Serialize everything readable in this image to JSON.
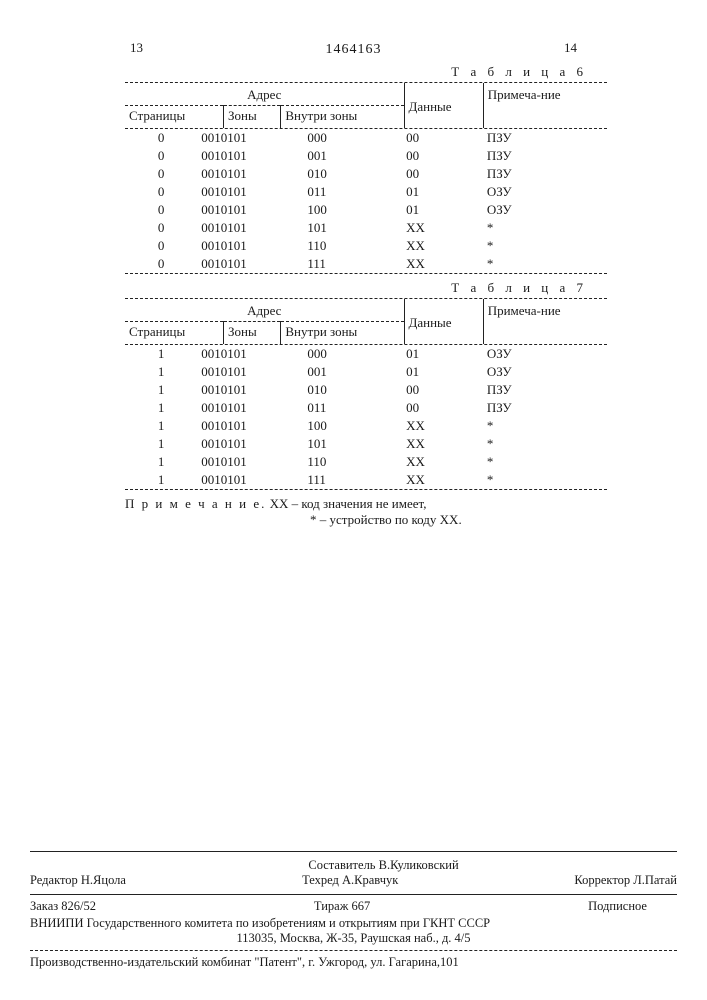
{
  "page_left": "13",
  "page_right": "14",
  "patent_number": "1464163",
  "table6": {
    "caption": "Т а б л и ц а  6",
    "headers": {
      "address": "Адрес",
      "pages": "Страницы",
      "zones": "Зоны",
      "inner_zone": "Внутри зоны",
      "data": "Данные",
      "note": "Примеча-ние"
    },
    "rows": [
      {
        "page": "0",
        "zone": "0010101",
        "inner": "000",
        "data": "00",
        "note": "ПЗУ"
      },
      {
        "page": "0",
        "zone": "0010101",
        "inner": "001",
        "data": "00",
        "note": "ПЗУ"
      },
      {
        "page": "0",
        "zone": "0010101",
        "inner": "010",
        "data": "00",
        "note": "ПЗУ"
      },
      {
        "page": "0",
        "zone": "0010101",
        "inner": "011",
        "data": "01",
        "note": "ОЗУ"
      },
      {
        "page": "0",
        "zone": "0010101",
        "inner": "100",
        "data": "01",
        "note": "ОЗУ"
      },
      {
        "page": "0",
        "zone": "0010101",
        "inner": "101",
        "data": "XX",
        "note": "*"
      },
      {
        "page": "0",
        "zone": "0010101",
        "inner": "110",
        "data": "XX",
        "note": "*"
      },
      {
        "page": "0",
        "zone": "0010101",
        "inner": "111",
        "data": "XX",
        "note": "*"
      }
    ]
  },
  "table7": {
    "caption": "Т а б л и ц а  7",
    "headers": {
      "address": "Адрес",
      "pages": "Страницы",
      "zones": "Зоны",
      "inner_zone": "Внутри зоны",
      "data": "Данные",
      "note": "Примеча-ние"
    },
    "rows": [
      {
        "page": "1",
        "zone": "0010101",
        "inner": "000",
        "data": "01",
        "note": "ОЗУ"
      },
      {
        "page": "1",
        "zone": "0010101",
        "inner": "001",
        "data": "01",
        "note": "ОЗУ"
      },
      {
        "page": "1",
        "zone": "0010101",
        "inner": "010",
        "data": "00",
        "note": "ПЗУ"
      },
      {
        "page": "1",
        "zone": "0010101",
        "inner": "011",
        "data": "00",
        "note": "ПЗУ"
      },
      {
        "page": "1",
        "zone": "0010101",
        "inner": "100",
        "data": "XX",
        "note": "*"
      },
      {
        "page": "1",
        "zone": "0010101",
        "inner": "101",
        "data": "XX",
        "note": "*"
      },
      {
        "page": "1",
        "zone": "0010101",
        "inner": "110",
        "data": "XX",
        "note": "*"
      },
      {
        "page": "1",
        "zone": "0010101",
        "inner": "111",
        "data": "XX",
        "note": "*"
      }
    ]
  },
  "note": {
    "label": "П р и м е ч а н и е.",
    "line1": " XX – код значения не имеет,",
    "line2": "* – устройство по коду XX."
  },
  "credits": {
    "compiler": "Составитель В.Куликовский",
    "editor": "Редактор Н.Яцола",
    "techred": "Техред А.Кравчук",
    "corrector": "Корректор Л.Патай"
  },
  "order": {
    "order": "Заказ 826/52",
    "tirazh": "Тираж 667",
    "podpisnoe": "Подписное"
  },
  "vniipi": {
    "line1": "ВНИИПИ Государственного комитета по изобретениям и открытиям при ГКНТ СССР",
    "line2": "113035, Москва, Ж-35, Раушская наб., д. 4/5"
  },
  "prod": "Производственно-издательский комбинат \"Патент\", г. Ужгород, ул. Гагарина,101"
}
